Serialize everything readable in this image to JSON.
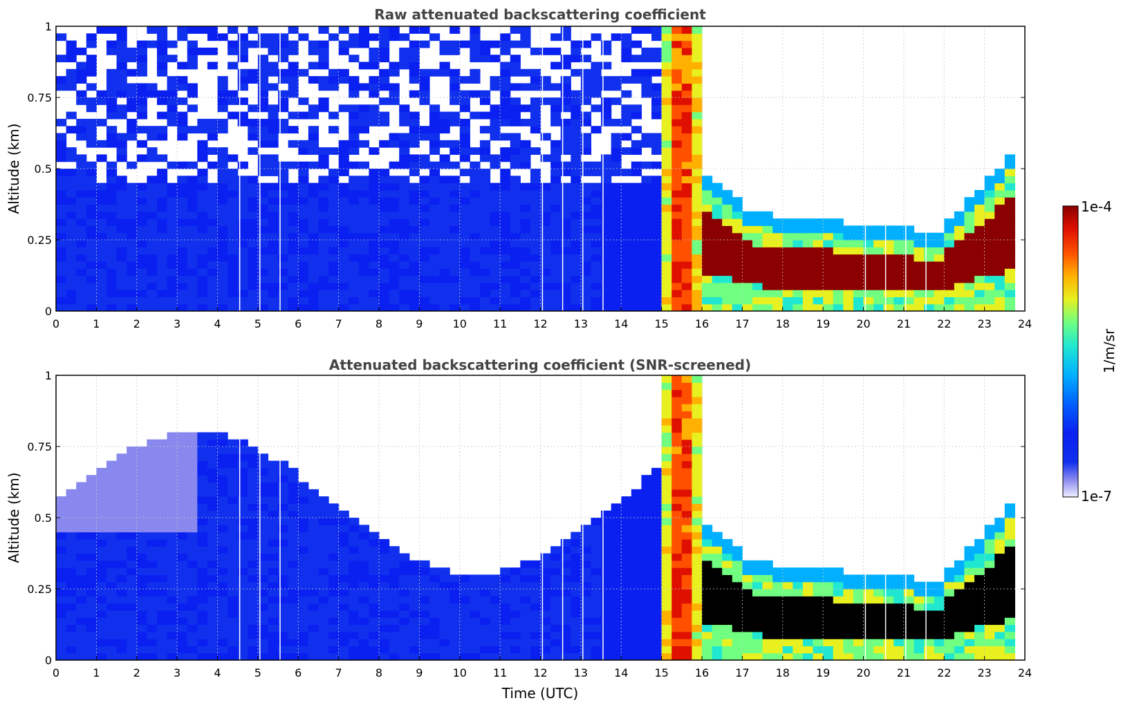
{
  "chart_data": [
    {
      "type": "heatmap",
      "title": "Raw attenuated backscattering coefficient",
      "xlabel": "",
      "ylabel": "Altitude (km)",
      "xlim": [
        0,
        24
      ],
      "ylim": [
        0,
        1
      ],
      "x_ticks": [
        "0",
        "1",
        "2",
        "3",
        "4",
        "5",
        "6",
        "7",
        "8",
        "9",
        "10",
        "11",
        "12",
        "13",
        "14",
        "15",
        "16",
        "17",
        "18",
        "19",
        "20",
        "21",
        "22",
        "23",
        "24"
      ],
      "y_ticks": [
        "0",
        "0.25",
        "0.5",
        "0.75",
        "1"
      ],
      "grid": true,
      "data_gaps_utc": [
        4.55,
        5.05,
        5.55,
        12.05,
        12.55,
        13.05,
        13.55,
        20.05,
        20.55,
        21.05,
        21.55
      ],
      "features": [
        {
          "time": 15.2,
          "description": "strong backscatter from surface to 1 km"
        },
        {
          "time_range": [
            16.5,
            23.5
          ],
          "layer_top_km": [
            0.4,
            0.25
          ],
          "layer_core_km": [
            0.2,
            0.15
          ]
        },
        {
          "time_range": [
            0,
            15
          ],
          "noise_above_km": 0.45
        }
      ],
      "grid_values": {
        "time_step_h": 0.5,
        "levels_km": [
          0.05,
          0.15,
          0.25,
          0.35,
          0.45,
          0.55,
          0.65,
          0.75,
          0.85,
          0.95
        ],
        "rows": []
      }
    },
    {
      "type": "heatmap",
      "title": "Attenuated backscattering coefficient (SNR-screened)",
      "xlabel": "Time (UTC)",
      "ylabel": "Altitude (km)",
      "xlim": [
        0,
        24
      ],
      "ylim": [
        0,
        1
      ],
      "x_ticks": [
        "0",
        "1",
        "2",
        "3",
        "4",
        "5",
        "6",
        "7",
        "8",
        "9",
        "10",
        "11",
        "12",
        "13",
        "14",
        "15",
        "16",
        "17",
        "18",
        "19",
        "20",
        "21",
        "22",
        "23",
        "24"
      ],
      "y_ticks": [
        "0",
        "0.25",
        "0.5",
        "0.75",
        "1"
      ],
      "grid": true,
      "screened": true,
      "saturated_color": "#000000"
    }
  ],
  "colorbar": {
    "label": "1/m/sr",
    "max_label": "1e-4",
    "min_label": "1e-7",
    "scale": "log",
    "colormap": [
      "#eeeeff",
      "#8888ee",
      "#1030ee",
      "#0a20f0",
      "#0060ff",
      "#00b0ff",
      "#20e8d0",
      "#70ff80",
      "#e8f020",
      "#ffb000",
      "#ff5000",
      "#e01000",
      "#8b0000"
    ]
  }
}
